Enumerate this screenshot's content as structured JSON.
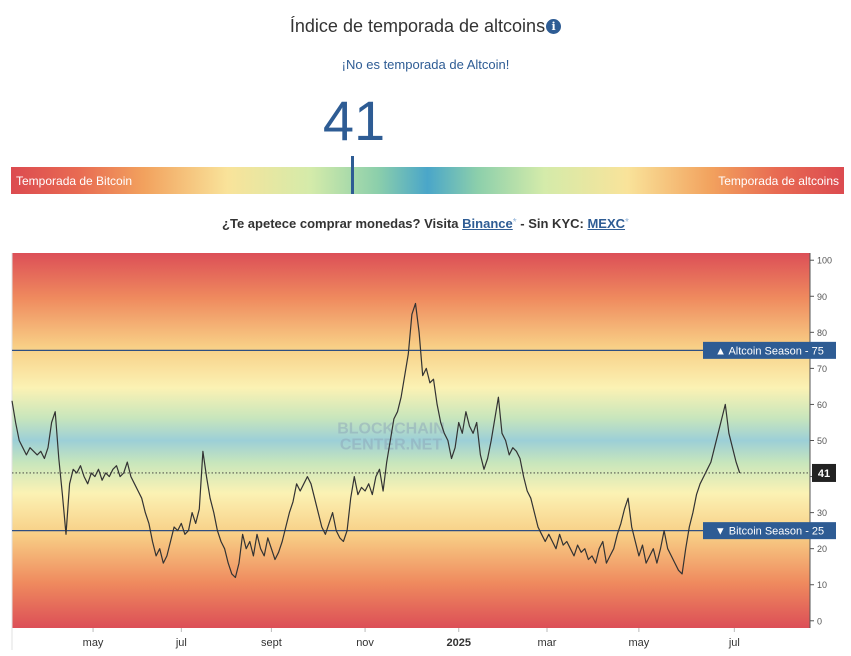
{
  "header": {
    "title": "Índice de temporada de altcoins",
    "info_icon": "info-icon",
    "status_text": "¡No es temporada de Altcoin!",
    "index_value": "41"
  },
  "gauge": {
    "left_label": "Temporada de Bitcoin",
    "right_label": "Temporada de altcoins",
    "value": 41,
    "min": 0,
    "max": 100
  },
  "promo": {
    "prefix": "¿Te apetece comprar monedas? Visita",
    "link1": "Binance",
    "middle": "- Sin KYC:",
    "link2": "MEXC",
    "ext_mark": "*"
  },
  "chart_data": {
    "type": "line",
    "watermark": "BLOCKCHAIN CENTER.NET",
    "ylim": [
      -2,
      102
    ],
    "yticks": [
      0,
      10,
      20,
      30,
      40,
      50,
      60,
      70,
      80,
      90,
      100
    ],
    "xlim": [
      0,
      443
    ],
    "xticks": [
      {
        "label": "may",
        "x": 45
      },
      {
        "label": "jul",
        "x": 94
      },
      {
        "label": "sept",
        "x": 144
      },
      {
        "label": "nov",
        "x": 196
      },
      {
        "label": "2025",
        "x": 248
      },
      {
        "label": "mar",
        "x": 297
      },
      {
        "label": "may",
        "x": 348
      },
      {
        "label": "jul",
        "x": 401
      }
    ],
    "reference_lines": [
      {
        "label": "▲ Altcoin Season - 75",
        "value": 75
      },
      {
        "label": "▼ Bitcoin Season - 25",
        "value": 25
      }
    ],
    "current": {
      "label": "41",
      "value": 41
    },
    "series": [
      {
        "values": [
          [
            0,
            61
          ],
          [
            2,
            55
          ],
          [
            4,
            50
          ],
          [
            6,
            48
          ],
          [
            8,
            46
          ],
          [
            10,
            48
          ],
          [
            12,
            47
          ],
          [
            14,
            46
          ],
          [
            16,
            47
          ],
          [
            18,
            45
          ],
          [
            20,
            48
          ],
          [
            22,
            55
          ],
          [
            24,
            58
          ],
          [
            26,
            45
          ],
          [
            28,
            35
          ],
          [
            30,
            24
          ],
          [
            32,
            38
          ],
          [
            34,
            42
          ],
          [
            36,
            41
          ],
          [
            38,
            43
          ],
          [
            40,
            40
          ],
          [
            42,
            38
          ],
          [
            44,
            41
          ],
          [
            46,
            40
          ],
          [
            48,
            42
          ],
          [
            50,
            39
          ],
          [
            52,
            41
          ],
          [
            54,
            40
          ],
          [
            56,
            42
          ],
          [
            58,
            43
          ],
          [
            60,
            40
          ],
          [
            62,
            41
          ],
          [
            64,
            44
          ],
          [
            66,
            40
          ],
          [
            68,
            38
          ],
          [
            70,
            36
          ],
          [
            72,
            34
          ],
          [
            74,
            30
          ],
          [
            76,
            27
          ],
          [
            78,
            22
          ],
          [
            80,
            18
          ],
          [
            82,
            20
          ],
          [
            84,
            16
          ],
          [
            86,
            18
          ],
          [
            88,
            22
          ],
          [
            90,
            26
          ],
          [
            92,
            25
          ],
          [
            94,
            27
          ],
          [
            96,
            24
          ],
          [
            98,
            25
          ],
          [
            100,
            30
          ],
          [
            102,
            27
          ],
          [
            104,
            31
          ],
          [
            106,
            47
          ],
          [
            108,
            40
          ],
          [
            110,
            34
          ],
          [
            112,
            30
          ],
          [
            114,
            25
          ],
          [
            116,
            22
          ],
          [
            118,
            20
          ],
          [
            120,
            16
          ],
          [
            122,
            13
          ],
          [
            124,
            12
          ],
          [
            126,
            16
          ],
          [
            128,
            24
          ],
          [
            130,
            20
          ],
          [
            132,
            22
          ],
          [
            134,
            18
          ],
          [
            136,
            24
          ],
          [
            138,
            20
          ],
          [
            140,
            18
          ],
          [
            142,
            23
          ],
          [
            144,
            20
          ],
          [
            146,
            17
          ],
          [
            148,
            19
          ],
          [
            150,
            22
          ],
          [
            152,
            26
          ],
          [
            154,
            30
          ],
          [
            156,
            33
          ],
          [
            158,
            38
          ],
          [
            160,
            36
          ],
          [
            162,
            38
          ],
          [
            164,
            40
          ],
          [
            166,
            38
          ],
          [
            168,
            34
          ],
          [
            170,
            30
          ],
          [
            172,
            26
          ],
          [
            174,
            24
          ],
          [
            176,
            27
          ],
          [
            178,
            30
          ],
          [
            180,
            25
          ],
          [
            182,
            23
          ],
          [
            184,
            22
          ],
          [
            186,
            25
          ],
          [
            188,
            34
          ],
          [
            190,
            40
          ],
          [
            192,
            35
          ],
          [
            194,
            37
          ],
          [
            196,
            36
          ],
          [
            198,
            38
          ],
          [
            200,
            35
          ],
          [
            202,
            40
          ],
          [
            204,
            42
          ],
          [
            206,
            36
          ],
          [
            208,
            44
          ],
          [
            210,
            50
          ],
          [
            212,
            56
          ],
          [
            214,
            58
          ],
          [
            216,
            62
          ],
          [
            218,
            68
          ],
          [
            220,
            74
          ],
          [
            222,
            85
          ],
          [
            224,
            88
          ],
          [
            226,
            80
          ],
          [
            228,
            68
          ],
          [
            230,
            70
          ],
          [
            232,
            66
          ],
          [
            234,
            67
          ],
          [
            236,
            60
          ],
          [
            238,
            55
          ],
          [
            240,
            52
          ],
          [
            242,
            50
          ],
          [
            244,
            45
          ],
          [
            246,
            48
          ],
          [
            248,
            55
          ],
          [
            250,
            52
          ],
          [
            252,
            58
          ],
          [
            254,
            54
          ],
          [
            256,
            52
          ],
          [
            258,
            55
          ],
          [
            260,
            46
          ],
          [
            262,
            42
          ],
          [
            264,
            45
          ],
          [
            266,
            50
          ],
          [
            268,
            56
          ],
          [
            270,
            62
          ],
          [
            272,
            52
          ],
          [
            274,
            50
          ],
          [
            276,
            46
          ],
          [
            278,
            48
          ],
          [
            280,
            47
          ],
          [
            282,
            45
          ],
          [
            284,
            40
          ],
          [
            286,
            36
          ],
          [
            288,
            34
          ],
          [
            290,
            30
          ],
          [
            292,
            26
          ],
          [
            294,
            24
          ],
          [
            296,
            22
          ],
          [
            298,
            24
          ],
          [
            300,
            22
          ],
          [
            302,
            20
          ],
          [
            304,
            24
          ],
          [
            306,
            21
          ],
          [
            308,
            22
          ],
          [
            310,
            20
          ],
          [
            312,
            18
          ],
          [
            314,
            21
          ],
          [
            316,
            19
          ],
          [
            318,
            20
          ],
          [
            320,
            17
          ],
          [
            322,
            18
          ],
          [
            324,
            16
          ],
          [
            326,
            20
          ],
          [
            328,
            22
          ],
          [
            330,
            16
          ],
          [
            332,
            18
          ],
          [
            334,
            20
          ],
          [
            336,
            24
          ],
          [
            338,
            27
          ],
          [
            340,
            31
          ],
          [
            342,
            34
          ],
          [
            344,
            26
          ],
          [
            346,
            22
          ],
          [
            348,
            18
          ],
          [
            350,
            21
          ],
          [
            352,
            16
          ],
          [
            354,
            18
          ],
          [
            356,
            20
          ],
          [
            358,
            16
          ],
          [
            360,
            20
          ],
          [
            362,
            25
          ],
          [
            364,
            20
          ],
          [
            366,
            18
          ],
          [
            368,
            16
          ],
          [
            370,
            14
          ],
          [
            372,
            13
          ],
          [
            374,
            20
          ],
          [
            376,
            26
          ],
          [
            378,
            30
          ],
          [
            380,
            35
          ],
          [
            382,
            38
          ],
          [
            384,
            40
          ],
          [
            386,
            42
          ],
          [
            388,
            44
          ],
          [
            390,
            48
          ],
          [
            392,
            52
          ],
          [
            394,
            56
          ],
          [
            396,
            60
          ],
          [
            398,
            52
          ],
          [
            400,
            48
          ],
          [
            402,
            44
          ],
          [
            404,
            41
          ]
        ]
      }
    ]
  }
}
